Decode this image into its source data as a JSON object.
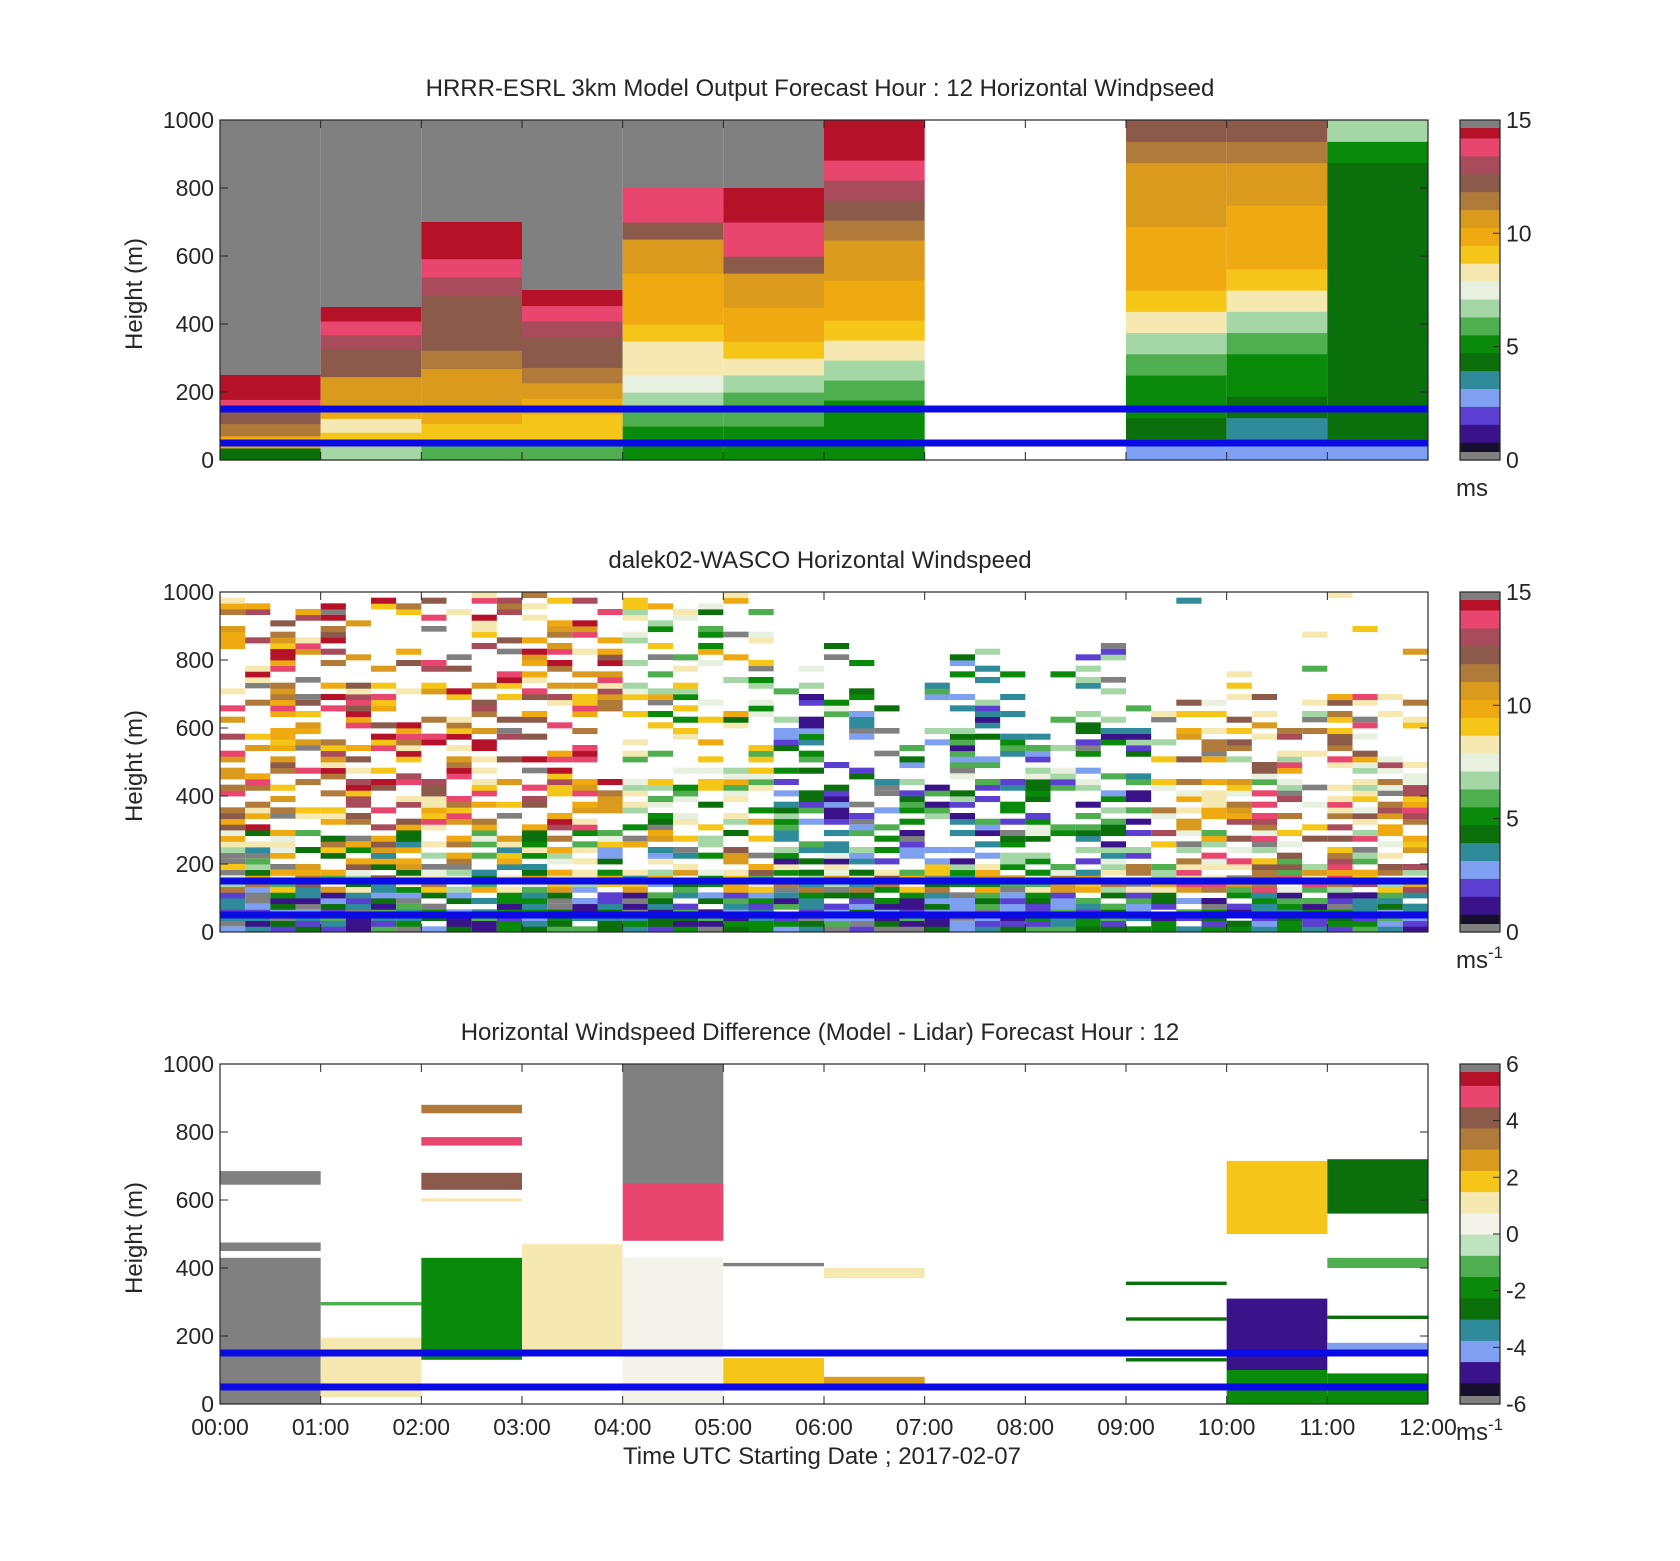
{
  "figure": {
    "xlabel": "Time UTC  Starting Date ; 2017-02-07",
    "x_ticks": [
      "00:00",
      "01:00",
      "02:00",
      "03:00",
      "04:00",
      "05:00",
      "06:00",
      "07:00",
      "08:00",
      "09:00",
      "10:00",
      "11:00",
      "12:00"
    ],
    "reference_lines": {
      "heights_m": [
        150,
        50
      ],
      "color": "#0a0ae6"
    }
  },
  "colormaps": {
    "speed": [
      "#16102e",
      "#3a138a",
      "#5a3fd0",
      "#7fa0f0",
      "#2f8a9a",
      "#0b6f0b",
      "#0a8a0a",
      "#4fae4f",
      "#a5d6a5",
      "#e8f0e0",
      "#f5e8b0",
      "#f5c518",
      "#eeaa10",
      "#d99a1e",
      "#b07a3a",
      "#8b5a4a",
      "#a84b5a",
      "#e8466e",
      "#b5122a"
    ],
    "diff": [
      "#16102e",
      "#3a138a",
      "#7fa0f0",
      "#2f8a9a",
      "#0b6f0b",
      "#0a8a0a",
      "#4fae4f",
      "#bfe2bf",
      "#f3f3ea",
      "#f5e8b0",
      "#f5c518",
      "#d99a1e",
      "#b07a3a",
      "#8b5a4a",
      "#e8466e",
      "#b5122a"
    ]
  },
  "chart_data": [
    {
      "type": "heatmap",
      "title": "HRRR-ESRL 3km Model Output   Forecast Hour : 12 Horizontal Windpseed",
      "xlabel": "",
      "ylabel": "Height (m)",
      "ylim": [
        0,
        1000
      ],
      "y_ticks": [
        0,
        200,
        400,
        600,
        800,
        1000
      ],
      "colorbar": {
        "range": [
          0,
          15
        ],
        "ticks": [
          0,
          5,
          10,
          15
        ],
        "unit": "ms",
        "unit_sup": "",
        "colormap": "speed"
      },
      "time_columns_h": [
        0,
        1,
        2,
        3,
        4,
        5,
        6,
        7,
        8,
        9,
        10,
        11
      ],
      "profiles": [
        {
          "start_h": 0,
          "end_h": 1,
          "top_m": 250,
          "values": [
            4.5,
            9.5,
            11.5,
            12.5,
            14,
            14.5,
            15
          ],
          "fill_above": "grey"
        },
        {
          "start_h": 1,
          "end_h": 2,
          "top_m": 450,
          "values": [
            7,
            9,
            8.5,
            9.5,
            10.5,
            11,
            12,
            12.5,
            13,
            14,
            15
          ],
          "fill_above": "grey"
        },
        {
          "start_h": 2,
          "end_h": 3,
          "top_m": 700,
          "values": [
            6,
            9,
            9.5,
            10.5,
            11,
            11.5,
            12,
            12,
            12.5,
            13,
            14,
            14.5,
            15
          ],
          "fill_above": "grey"
        },
        {
          "start_h": 3,
          "end_h": 4,
          "top_m": 500,
          "values": [
            6,
            9,
            9,
            9.5,
            11,
            11.5,
            12,
            12.5,
            13,
            14,
            15
          ],
          "fill_above": "grey"
        },
        {
          "start_h": 4,
          "end_h": 5,
          "top_m": 800,
          "values": [
            5,
            5.5,
            6,
            6.5,
            7.5,
            8,
            8.5,
            9,
            9.5,
            10,
            10,
            10.5,
            11,
            12,
            14,
            14
          ],
          "fill_above": "grey"
        },
        {
          "start_h": 5,
          "end_h": 6,
          "top_m": 800,
          "values": [
            5,
            5.5,
            6,
            6,
            7,
            8,
            9,
            9.5,
            10,
            10.5,
            11,
            12,
            13.5,
            14,
            14.5,
            15
          ],
          "fill_above": "grey"
        },
        {
          "start_h": 6,
          "end_h": 7,
          "top_m": 1000,
          "values": [
            5,
            5,
            5.5,
            6,
            7,
            8,
            9,
            9.5,
            10,
            10.5,
            11,
            11.5,
            12,
            13,
            14,
            15,
            15
          ],
          "fill_above": "grey"
        },
        {
          "start_h": 7,
          "end_h": 9,
          "top_m": 0,
          "values": [],
          "fill_above": "none"
        },
        {
          "start_h": 9,
          "end_h": 10,
          "top_m": 1000,
          "values": [
            3,
            4.5,
            5,
            5,
            6,
            7,
            8,
            9,
            9.5,
            9.5,
            10,
            10.5,
            10.5,
            11,
            11.5,
            12
          ],
          "fill_above": "none"
        },
        {
          "start_h": 10,
          "end_h": 11,
          "top_m": 1000,
          "values": [
            3,
            3.5,
            4.5,
            5,
            5.5,
            6,
            7,
            8,
            9,
            9.5,
            10,
            10,
            10.5,
            11,
            11.5,
            12
          ],
          "fill_above": "none"
        },
        {
          "start_h": 11,
          "end_h": 12,
          "top_m": 1000,
          "values": [
            2.5,
            4,
            4.5,
            4.5,
            4.5,
            4.5,
            4.5,
            4.5,
            4.5,
            4.5,
            4.5,
            4.5,
            4.5,
            4.5,
            5,
            6.5
          ],
          "fill_above": "none"
        }
      ]
    },
    {
      "type": "heatmap",
      "title": "dalek02-WASCO  Horizontal Windspeed",
      "xlabel": "",
      "ylabel": "Height (m)",
      "ylim": [
        0,
        1000
      ],
      "y_ticks": [
        0,
        200,
        400,
        600,
        800,
        1000
      ],
      "colorbar": {
        "range": [
          0,
          15
        ],
        "ticks": [
          0,
          5,
          10,
          15
        ],
        "unit": "ms",
        "unit_sup": "-1",
        "colormap": "speed"
      },
      "observations": {
        "time_range_h": [
          0,
          12
        ],
        "height_range_m": [
          0,
          1000
        ],
        "note": "range-gate lidar retrievals with gaps"
      }
    },
    {
      "type": "heatmap",
      "title": "Horizontal Windspeed Difference (Model - Lidar) Forecast Hour : 12",
      "xlabel": "Time UTC  Starting Date ; 2017-02-07",
      "ylabel": "Height (m)",
      "ylim": [
        0,
        1000
      ],
      "y_ticks": [
        0,
        200,
        400,
        600,
        800,
        1000
      ],
      "colorbar": {
        "range": [
          -6,
          6
        ],
        "ticks": [
          -6,
          -4,
          -2,
          0,
          2,
          4,
          6
        ],
        "unit": "ms",
        "unit_sup": "-1",
        "colormap": "diff"
      },
      "segments": [
        {
          "start_h": 0,
          "end_h": 1,
          "bottom_m": 0,
          "top_m": 430,
          "value": 6
        },
        {
          "start_h": 0,
          "end_h": 1,
          "bottom_m": 450,
          "top_m": 475,
          "value": 6
        },
        {
          "start_h": 0,
          "end_h": 1,
          "bottom_m": 645,
          "top_m": 685,
          "value": 6
        },
        {
          "start_h": 1,
          "end_h": 2,
          "bottom_m": 20,
          "top_m": 195,
          "value": 1
        },
        {
          "start_h": 1,
          "end_h": 2,
          "bottom_m": 290,
          "top_m": 300,
          "value": -1
        },
        {
          "start_h": 2,
          "end_h": 3,
          "bottom_m": 130,
          "top_m": 430,
          "value": -2
        },
        {
          "start_h": 2,
          "end_h": 3,
          "bottom_m": 595,
          "top_m": 605,
          "value": 1
        },
        {
          "start_h": 2,
          "end_h": 3,
          "bottom_m": 630,
          "top_m": 680,
          "value": 4
        },
        {
          "start_h": 2,
          "end_h": 3,
          "bottom_m": 760,
          "top_m": 785,
          "value": 5
        },
        {
          "start_h": 2,
          "end_h": 3,
          "bottom_m": 855,
          "top_m": 880,
          "value": 3
        },
        {
          "start_h": 3,
          "end_h": 4,
          "bottom_m": 150,
          "top_m": 470,
          "value": 1
        },
        {
          "start_h": 4,
          "end_h": 5,
          "bottom_m": 0,
          "top_m": 430,
          "value": 0.5
        },
        {
          "start_h": 4,
          "end_h": 5,
          "bottom_m": 480,
          "top_m": 650,
          "value": 4.5
        },
        {
          "start_h": 4,
          "end_h": 5,
          "bottom_m": 650,
          "top_m": 1000,
          "value": 6
        },
        {
          "start_h": 5,
          "end_h": 6,
          "bottom_m": 50,
          "top_m": 135,
          "value": 1.5
        },
        {
          "start_h": 5,
          "end_h": 6,
          "bottom_m": 405,
          "top_m": 415,
          "value": 6
        },
        {
          "start_h": 6,
          "end_h": 7,
          "bottom_m": 50,
          "top_m": 80,
          "value": 2.5
        },
        {
          "start_h": 6,
          "end_h": 7,
          "bottom_m": 370,
          "top_m": 400,
          "value": 1
        },
        {
          "start_h": 9,
          "end_h": 10,
          "bottom_m": 125,
          "top_m": 135,
          "value": -3
        },
        {
          "start_h": 9,
          "end_h": 10,
          "bottom_m": 245,
          "top_m": 255,
          "value": -2.5
        },
        {
          "start_h": 9,
          "end_h": 10,
          "bottom_m": 350,
          "top_m": 360,
          "value": -3
        },
        {
          "start_h": 10,
          "end_h": 11,
          "bottom_m": 0,
          "top_m": 100,
          "value": -2
        },
        {
          "start_h": 10,
          "end_h": 11,
          "bottom_m": 100,
          "top_m": 310,
          "value": -5
        },
        {
          "start_h": 10,
          "end_h": 11,
          "bottom_m": 500,
          "top_m": 715,
          "value": 1.5
        },
        {
          "start_h": 11,
          "end_h": 12,
          "bottom_m": 0,
          "top_m": 90,
          "value": -2
        },
        {
          "start_h": 11,
          "end_h": 12,
          "bottom_m": 160,
          "top_m": 180,
          "value": -4
        },
        {
          "start_h": 11,
          "end_h": 12,
          "bottom_m": 250,
          "top_m": 260,
          "value": -2.5
        },
        {
          "start_h": 11,
          "end_h": 12,
          "bottom_m": 400,
          "top_m": 430,
          "value": -1.5
        },
        {
          "start_h": 11,
          "end_h": 12,
          "bottom_m": 560,
          "top_m": 720,
          "value": -2.5
        }
      ]
    }
  ]
}
